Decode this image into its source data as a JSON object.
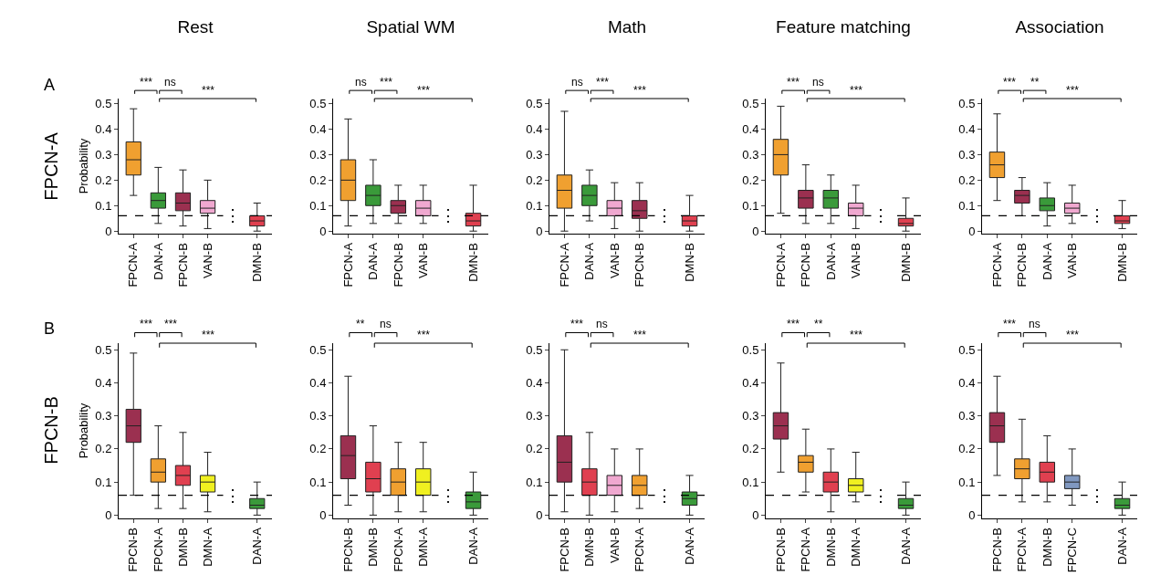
{
  "chart_data": [
    {
      "type": "box",
      "title": "Rest",
      "ylabel": "Probability",
      "categories": [
        "FPCN-A",
        "DAN-A",
        "FPCN-B",
        "VAN-B",
        null,
        "DMN-B"
      ],
      "colors": [
        "#f0a030",
        "#3a9a3a",
        "#9b3050",
        "#f0a8d0",
        null,
        "#e04050"
      ],
      "boxes": [
        {
          "low": 0.14,
          "q1": 0.22,
          "median": 0.28,
          "q3": 0.35,
          "high": 0.48
        },
        {
          "low": 0.03,
          "q1": 0.09,
          "median": 0.12,
          "q3": 0.15,
          "high": 0.25
        },
        {
          "low": 0.02,
          "q1": 0.08,
          "median": 0.11,
          "q3": 0.15,
          "high": 0.24
        },
        {
          "low": 0.01,
          "q1": 0.07,
          "median": 0.09,
          "q3": 0.12,
          "high": 0.2
        },
        null,
        {
          "low": 0.0,
          "q1": 0.02,
          "median": 0.04,
          "q3": 0.06,
          "high": 0.11
        }
      ],
      "ylim": [
        -0.01,
        0.52
      ],
      "yticks": [
        0,
        0.1,
        0.2,
        0.3,
        0.4,
        0.5
      ],
      "ref_lines": [
        {
          "axis": "y",
          "value": 0.06,
          "line_style": "dashed",
          "color": "#000000"
        }
      ],
      "annotations": [
        "***",
        "ns",
        "***",
        "⋮",
        "A",
        "FPCN-A"
      ],
      "grid": false
    },
    {
      "type": "box",
      "title": "Spatial WM",
      "categories": [
        "FPCN-A",
        "DAN-A",
        "FPCN-B",
        "VAN-B",
        null,
        "DMN-B"
      ],
      "colors": [
        "#f0a030",
        "#3a9a3a",
        "#9b3050",
        "#f0a8d0",
        null,
        "#e04050"
      ],
      "boxes": [
        {
          "low": 0.02,
          "q1": 0.12,
          "median": 0.2,
          "q3": 0.28,
          "high": 0.44
        },
        {
          "low": 0.03,
          "q1": 0.1,
          "median": 0.14,
          "q3": 0.18,
          "high": 0.28
        },
        {
          "low": 0.03,
          "q1": 0.07,
          "median": 0.1,
          "q3": 0.12,
          "high": 0.18
        },
        {
          "low": 0.03,
          "q1": 0.06,
          "median": 0.09,
          "q3": 0.12,
          "high": 0.18
        },
        null,
        {
          "low": 0.0,
          "q1": 0.02,
          "median": 0.04,
          "q3": 0.07,
          "high": 0.18
        }
      ],
      "ylim": [
        -0.01,
        0.52
      ],
      "yticks": [
        0,
        0.1,
        0.2,
        0.3,
        0.4,
        0.5
      ],
      "ref_lines": [
        {
          "axis": "y",
          "value": 0.06,
          "line_style": "dashed",
          "color": "#000000"
        }
      ],
      "annotations": [
        "ns",
        "***",
        "***",
        "⋮"
      ],
      "grid": false
    },
    {
      "type": "box",
      "title": "Math",
      "categories": [
        "FPCN-A",
        "DAN-A",
        "VAN-B",
        "FPCN-B",
        null,
        "DMN-B"
      ],
      "colors": [
        "#f0a030",
        "#3a9a3a",
        "#f0a8d0",
        "#9b3050",
        null,
        "#e04050"
      ],
      "boxes": [
        {
          "low": 0.0,
          "q1": 0.09,
          "median": 0.16,
          "q3": 0.22,
          "high": 0.47
        },
        {
          "low": 0.04,
          "q1": 0.1,
          "median": 0.14,
          "q3": 0.18,
          "high": 0.24
        },
        {
          "low": 0.01,
          "q1": 0.06,
          "median": 0.09,
          "q3": 0.12,
          "high": 0.19
        },
        {
          "low": 0.0,
          "q1": 0.05,
          "median": 0.08,
          "q3": 0.12,
          "high": 0.19
        },
        null,
        {
          "low": 0.0,
          "q1": 0.02,
          "median": 0.04,
          "q3": 0.06,
          "high": 0.14
        }
      ],
      "ylim": [
        -0.01,
        0.52
      ],
      "yticks": [
        0,
        0.1,
        0.2,
        0.3,
        0.4,
        0.5
      ],
      "ref_lines": [
        {
          "axis": "y",
          "value": 0.06,
          "line_style": "dashed",
          "color": "#000000"
        }
      ],
      "annotations": [
        "ns",
        "***",
        "***",
        "⋮"
      ],
      "grid": false
    },
    {
      "type": "box",
      "title": "Feature matching",
      "categories": [
        "FPCN-A",
        "FPCN-B",
        "DAN-A",
        "VAN-B",
        null,
        "DMN-B"
      ],
      "colors": [
        "#f0a030",
        "#9b3050",
        "#3a9a3a",
        "#f0a8d0",
        null,
        "#e04050"
      ],
      "boxes": [
        {
          "low": 0.07,
          "q1": 0.22,
          "median": 0.3,
          "q3": 0.36,
          "high": 0.49
        },
        {
          "low": 0.03,
          "q1": 0.09,
          "median": 0.13,
          "q3": 0.16,
          "high": 0.26
        },
        {
          "low": 0.03,
          "q1": 0.09,
          "median": 0.13,
          "q3": 0.16,
          "high": 0.22
        },
        {
          "low": 0.01,
          "q1": 0.06,
          "median": 0.09,
          "q3": 0.11,
          "high": 0.18
        },
        null,
        {
          "low": 0.0,
          "q1": 0.02,
          "median": 0.03,
          "q3": 0.05,
          "high": 0.13
        }
      ],
      "ylim": [
        -0.01,
        0.52
      ],
      "yticks": [
        0,
        0.1,
        0.2,
        0.3,
        0.4,
        0.5
      ],
      "ref_lines": [
        {
          "axis": "y",
          "value": 0.06,
          "line_style": "dashed",
          "color": "#000000"
        }
      ],
      "annotations": [
        "***",
        "ns",
        "***",
        "⋮"
      ],
      "grid": false
    },
    {
      "type": "box",
      "title": "Association",
      "categories": [
        "FPCN-A",
        "FPCN-B",
        "DAN-A",
        "VAN-B",
        null,
        "DMN-B"
      ],
      "colors": [
        "#f0a030",
        "#9b3050",
        "#3a9a3a",
        "#f0a8d0",
        null,
        "#e04050"
      ],
      "boxes": [
        {
          "low": 0.12,
          "q1": 0.21,
          "median": 0.26,
          "q3": 0.31,
          "high": 0.46
        },
        {
          "low": 0.06,
          "q1": 0.11,
          "median": 0.14,
          "q3": 0.16,
          "high": 0.21
        },
        {
          "low": 0.02,
          "q1": 0.08,
          "median": 0.1,
          "q3": 0.13,
          "high": 0.19
        },
        {
          "low": 0.03,
          "q1": 0.07,
          "median": 0.09,
          "q3": 0.11,
          "high": 0.18
        },
        null,
        {
          "low": 0.01,
          "q1": 0.03,
          "median": 0.04,
          "q3": 0.06,
          "high": 0.12
        }
      ],
      "ylim": [
        -0.01,
        0.52
      ],
      "yticks": [
        0,
        0.1,
        0.2,
        0.3,
        0.4,
        0.5
      ],
      "ref_lines": [
        {
          "axis": "y",
          "value": 0.06,
          "line_style": "dashed",
          "color": "#000000"
        }
      ],
      "annotations": [
        "***",
        "**",
        "***",
        "⋮"
      ],
      "grid": false
    },
    {
      "type": "box",
      "ylabel": "Probability",
      "categories": [
        "FPCN-B",
        "FPCN-A",
        "DMN-B",
        "DMN-A",
        null,
        "DAN-A"
      ],
      "colors": [
        "#9b3050",
        "#f0a030",
        "#e04050",
        "#f0f020",
        null,
        "#3a9a3a"
      ],
      "boxes": [
        {
          "low": 0.06,
          "q1": 0.22,
          "median": 0.27,
          "q3": 0.32,
          "high": 0.49
        },
        {
          "low": 0.02,
          "q1": 0.1,
          "median": 0.13,
          "q3": 0.17,
          "high": 0.27
        },
        {
          "low": 0.02,
          "q1": 0.09,
          "median": 0.12,
          "q3": 0.15,
          "high": 0.25
        },
        {
          "low": 0.01,
          "q1": 0.07,
          "median": 0.1,
          "q3": 0.12,
          "high": 0.19
        },
        null,
        {
          "low": 0.0,
          "q1": 0.02,
          "median": 0.03,
          "q3": 0.05,
          "high": 0.1
        }
      ],
      "ylim": [
        -0.01,
        0.52
      ],
      "yticks": [
        0,
        0.1,
        0.2,
        0.3,
        0.4,
        0.5
      ],
      "ref_lines": [
        {
          "axis": "y",
          "value": 0.06,
          "line_style": "dashed",
          "color": "#000000"
        }
      ],
      "annotations": [
        "***",
        "***",
        "***",
        "⋮",
        "B",
        "FPCN-B"
      ],
      "grid": false
    },
    {
      "type": "box",
      "categories": [
        "FPCN-B",
        "DMN-B",
        "FPCN-A",
        "DMN-A",
        null,
        "DAN-A"
      ],
      "colors": [
        "#9b3050",
        "#e04050",
        "#f0a030",
        "#f0f020",
        null,
        "#3a9a3a"
      ],
      "boxes": [
        {
          "low": 0.03,
          "q1": 0.11,
          "median": 0.18,
          "q3": 0.24,
          "high": 0.42
        },
        {
          "low": 0.0,
          "q1": 0.07,
          "median": 0.11,
          "q3": 0.16,
          "high": 0.27
        },
        {
          "low": 0.01,
          "q1": 0.06,
          "median": 0.1,
          "q3": 0.14,
          "high": 0.22
        },
        {
          "low": 0.01,
          "q1": 0.06,
          "median": 0.1,
          "q3": 0.14,
          "high": 0.22
        },
        null,
        {
          "low": 0.0,
          "q1": 0.02,
          "median": 0.04,
          "q3": 0.07,
          "high": 0.13
        }
      ],
      "ylim": [
        -0.01,
        0.52
      ],
      "yticks": [
        0,
        0.1,
        0.2,
        0.3,
        0.4,
        0.5
      ],
      "ref_lines": [
        {
          "axis": "y",
          "value": 0.06,
          "line_style": "dashed",
          "color": "#000000"
        }
      ],
      "annotations": [
        "**",
        "ns",
        "***",
        "⋮"
      ],
      "grid": false
    },
    {
      "type": "box",
      "categories": [
        "FPCN-B",
        "DMN-B",
        "VAN-B",
        "FPCN-A",
        null,
        "DAN-A"
      ],
      "colors": [
        "#9b3050",
        "#e04050",
        "#f0a8d0",
        "#f0a030",
        null,
        "#3a9a3a"
      ],
      "boxes": [
        {
          "low": 0.01,
          "q1": 0.1,
          "median": 0.16,
          "q3": 0.24,
          "high": 0.5
        },
        {
          "low": 0.0,
          "q1": 0.06,
          "median": 0.1,
          "q3": 0.14,
          "high": 0.25
        },
        {
          "low": 0.01,
          "q1": 0.06,
          "median": 0.09,
          "q3": 0.12,
          "high": 0.2
        },
        {
          "low": 0.02,
          "q1": 0.06,
          "median": 0.09,
          "q3": 0.12,
          "high": 0.2
        },
        null,
        {
          "low": 0.0,
          "q1": 0.03,
          "median": 0.05,
          "q3": 0.07,
          "high": 0.12
        }
      ],
      "ylim": [
        -0.01,
        0.52
      ],
      "yticks": [
        0,
        0.1,
        0.2,
        0.3,
        0.4,
        0.5
      ],
      "ref_lines": [
        {
          "axis": "y",
          "value": 0.06,
          "line_style": "dashed",
          "color": "#000000"
        }
      ],
      "annotations": [
        "***",
        "ns",
        "***",
        "⋮"
      ],
      "grid": false
    },
    {
      "type": "box",
      "categories": [
        "FPCN-B",
        "FPCN-A",
        "DMN-B",
        "DMN-A",
        null,
        "DAN-A"
      ],
      "colors": [
        "#9b3050",
        "#f0a030",
        "#e04050",
        "#f0f020",
        null,
        "#3a9a3a"
      ],
      "boxes": [
        {
          "low": 0.13,
          "q1": 0.23,
          "median": 0.27,
          "q3": 0.31,
          "high": 0.46
        },
        {
          "low": 0.07,
          "q1": 0.13,
          "median": 0.16,
          "q3": 0.18,
          "high": 0.26
        },
        {
          "low": 0.01,
          "q1": 0.07,
          "median": 0.1,
          "q3": 0.13,
          "high": 0.2
        },
        {
          "low": 0.04,
          "q1": 0.07,
          "median": 0.09,
          "q3": 0.11,
          "high": 0.19
        },
        null,
        {
          "low": 0.0,
          "q1": 0.02,
          "median": 0.03,
          "q3": 0.05,
          "high": 0.1
        }
      ],
      "ylim": [
        -0.01,
        0.52
      ],
      "yticks": [
        0,
        0.1,
        0.2,
        0.3,
        0.4,
        0.5
      ],
      "ref_lines": [
        {
          "axis": "y",
          "value": 0.06,
          "line_style": "dashed",
          "color": "#000000"
        }
      ],
      "annotations": [
        "***",
        "**",
        "***",
        "⋮"
      ],
      "grid": false
    },
    {
      "type": "box",
      "categories": [
        "FPCN-B",
        "FPCN-A",
        "DMN-B",
        "FPCN-C",
        null,
        "DAN-A"
      ],
      "colors": [
        "#9b3050",
        "#f0a030",
        "#e04050",
        "#8098c0",
        null,
        "#3a9a3a"
      ],
      "boxes": [
        {
          "low": 0.12,
          "q1": 0.22,
          "median": 0.27,
          "q3": 0.31,
          "high": 0.42
        },
        {
          "low": 0.04,
          "q1": 0.11,
          "median": 0.14,
          "q3": 0.17,
          "high": 0.29
        },
        {
          "low": 0.04,
          "q1": 0.1,
          "median": 0.13,
          "q3": 0.16,
          "high": 0.24
        },
        {
          "low": 0.03,
          "q1": 0.08,
          "median": 0.1,
          "q3": 0.12,
          "high": 0.2
        },
        null,
        {
          "low": 0.0,
          "q1": 0.02,
          "median": 0.03,
          "q3": 0.05,
          "high": 0.1
        }
      ],
      "ylim": [
        -0.01,
        0.52
      ],
      "yticks": [
        0,
        0.1,
        0.2,
        0.3,
        0.4,
        0.5
      ],
      "ref_lines": [
        {
          "axis": "y",
          "value": 0.06,
          "line_style": "dashed",
          "color": "#000000"
        }
      ],
      "annotations": [
        "***",
        "ns",
        "***",
        "⋮"
      ],
      "grid": false
    }
  ]
}
